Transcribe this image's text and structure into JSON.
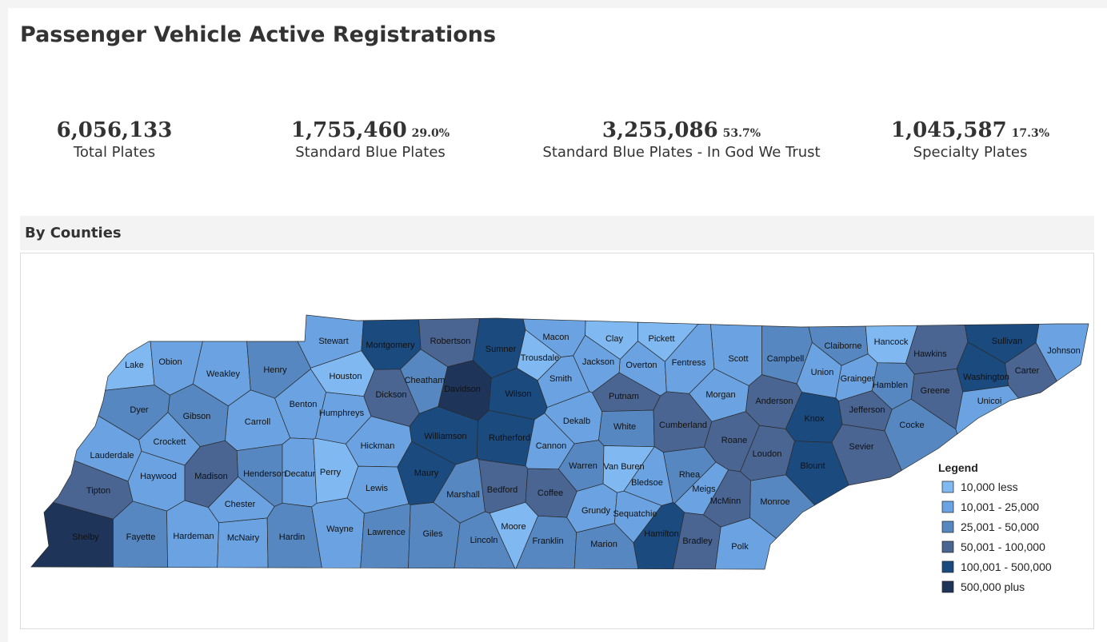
{
  "header": {
    "title": "Passenger Vehicle Active Registrations"
  },
  "stats": [
    {
      "value": "6,056,133",
      "label": "Total Plates"
    },
    {
      "value": "1,755,460",
      "percent": "29.0%",
      "label": "Standard Blue Plates"
    },
    {
      "value": "3,255,086",
      "percent": "53.7%",
      "label": "Standard Blue Plates - In God We Trust"
    },
    {
      "value": "1,045,587",
      "percent": "17.3%",
      "label": "Specialty Plates"
    }
  ],
  "section": {
    "title": "By Counties"
  },
  "legend": {
    "title": "Legend",
    "items": [
      {
        "label": "10,000 less",
        "color": "#80b9f2"
      },
      {
        "label": "10,001 - 25,000",
        "color": "#6ba3e2"
      },
      {
        "label": "25,001 - 50,000",
        "color": "#5687c0"
      },
      {
        "label": "50,001 - 100,000",
        "color": "#4a6592"
      },
      {
        "label": "100,001 - 500,000",
        "color": "#1b4a7f"
      },
      {
        "label": "500,000 plus",
        "color": "#1f3459"
      }
    ]
  },
  "counties": [
    {
      "name": "Lake",
      "color": "#80b9f2"
    },
    {
      "name": "Obion",
      "color": "#6ba3e2"
    },
    {
      "name": "Weakley",
      "color": "#6ba3e2"
    },
    {
      "name": "Henry",
      "color": "#5687c0"
    },
    {
      "name": "Stewart",
      "color": "#6ba3e2"
    },
    {
      "name": "Montgomery",
      "color": "#1b4a7f"
    },
    {
      "name": "Robertson",
      "color": "#4a6592"
    },
    {
      "name": "Sumner",
      "color": "#1b4a7f"
    },
    {
      "name": "Macon",
      "color": "#6ba3e2"
    },
    {
      "name": "Clay",
      "color": "#80b9f2"
    },
    {
      "name": "Pickett",
      "color": "#80b9f2"
    },
    {
      "name": "Scott",
      "color": "#6ba3e2"
    },
    {
      "name": "Campbell",
      "color": "#5687c0"
    },
    {
      "name": "Claiborne",
      "color": "#5687c0"
    },
    {
      "name": "Hancock",
      "color": "#80b9f2"
    },
    {
      "name": "Hawkins",
      "color": "#4a6592"
    },
    {
      "name": "Sullivan",
      "color": "#1b4a7f"
    },
    {
      "name": "Johnson",
      "color": "#6ba3e2"
    },
    {
      "name": "Trousdale",
      "color": "#80b9f2"
    },
    {
      "name": "Jackson",
      "color": "#6ba3e2"
    },
    {
      "name": "Overton",
      "color": "#6ba3e2"
    },
    {
      "name": "Fentress",
      "color": "#6ba3e2"
    },
    {
      "name": "Union",
      "color": "#6ba3e2"
    },
    {
      "name": "Grainger",
      "color": "#6ba3e2"
    },
    {
      "name": "Hamblen",
      "color": "#5687c0"
    },
    {
      "name": "Washington",
      "color": "#1b4a7f"
    },
    {
      "name": "Carter",
      "color": "#4a6592"
    },
    {
      "name": "Greene",
      "color": "#4a6592"
    },
    {
      "name": "Unicoi",
      "color": "#6ba3e2"
    },
    {
      "name": "Houston",
      "color": "#80b9f2"
    },
    {
      "name": "Cheatham",
      "color": "#5687c0"
    },
    {
      "name": "Davidson",
      "color": "#1f3459"
    },
    {
      "name": "Wilson",
      "color": "#1b4a7f"
    },
    {
      "name": "Smith",
      "color": "#6ba3e2"
    },
    {
      "name": "Putnam",
      "color": "#4a6592"
    },
    {
      "name": "Morgan",
      "color": "#6ba3e2"
    },
    {
      "name": "Anderson",
      "color": "#4a6592"
    },
    {
      "name": "Knox",
      "color": "#1b4a7f"
    },
    {
      "name": "Jefferson",
      "color": "#4a6592"
    },
    {
      "name": "Cocke",
      "color": "#5687c0"
    },
    {
      "name": "Sevier",
      "color": "#4a6592"
    },
    {
      "name": "Dyer",
      "color": "#5687c0"
    },
    {
      "name": "Gibson",
      "color": "#5687c0"
    },
    {
      "name": "Carroll",
      "color": "#6ba3e2"
    },
    {
      "name": "Benton",
      "color": "#6ba3e2"
    },
    {
      "name": "Humphreys",
      "color": "#6ba3e2"
    },
    {
      "name": "Dickson",
      "color": "#4a6592"
    },
    {
      "name": "Williamson",
      "color": "#1b4a7f"
    },
    {
      "name": "Rutherford",
      "color": "#1b4a7f"
    },
    {
      "name": "Dekalb",
      "color": "#6ba3e2"
    },
    {
      "name": "White",
      "color": "#5687c0"
    },
    {
      "name": "Cumberland",
      "color": "#4a6592"
    },
    {
      "name": "Roane",
      "color": "#4a6592"
    },
    {
      "name": "Loudon",
      "color": "#4a6592"
    },
    {
      "name": "Blount",
      "color": "#1b4a7f"
    },
    {
      "name": "Crockett",
      "color": "#6ba3e2"
    },
    {
      "name": "Lauderdale",
      "color": "#6ba3e2"
    },
    {
      "name": "Haywood",
      "color": "#6ba3e2"
    },
    {
      "name": "Madison",
      "color": "#4a6592"
    },
    {
      "name": "Henderson",
      "color": "#5687c0"
    },
    {
      "name": "Decatur",
      "color": "#6ba3e2"
    },
    {
      "name": "Perry",
      "color": "#80b9f2"
    },
    {
      "name": "Hickman",
      "color": "#6ba3e2"
    },
    {
      "name": "Lewis",
      "color": "#6ba3e2"
    },
    {
      "name": "Maury",
      "color": "#1b4a7f"
    },
    {
      "name": "Marshall",
      "color": "#5687c0"
    },
    {
      "name": "Bedford",
      "color": "#4a6592"
    },
    {
      "name": "Coffee",
      "color": "#4a6592"
    },
    {
      "name": "Cannon",
      "color": "#6ba3e2"
    },
    {
      "name": "Warren",
      "color": "#5687c0"
    },
    {
      "name": "Van Buren",
      "color": "#80b9f2"
    },
    {
      "name": "Bledsoe",
      "color": "#6ba3e2"
    },
    {
      "name": "Rhea",
      "color": "#5687c0"
    },
    {
      "name": "Meigs",
      "color": "#6ba3e2"
    },
    {
      "name": "McMinn",
      "color": "#4a6592"
    },
    {
      "name": "Monroe",
      "color": "#5687c0"
    },
    {
      "name": "Tipton",
      "color": "#4a6592"
    },
    {
      "name": "Shelby",
      "color": "#1f3459"
    },
    {
      "name": "Fayette",
      "color": "#5687c0"
    },
    {
      "name": "Hardeman",
      "color": "#6ba3e2"
    },
    {
      "name": "McNairy",
      "color": "#6ba3e2"
    },
    {
      "name": "Chester",
      "color": "#6ba3e2"
    },
    {
      "name": "Hardin",
      "color": "#5687c0"
    },
    {
      "name": "Wayne",
      "color": "#6ba3e2"
    },
    {
      "name": "Lawrence",
      "color": "#5687c0"
    },
    {
      "name": "Giles",
      "color": "#5687c0"
    },
    {
      "name": "Lincoln",
      "color": "#5687c0"
    },
    {
      "name": "Moore",
      "color": "#80b9f2"
    },
    {
      "name": "Franklin",
      "color": "#5687c0"
    },
    {
      "name": "Grundy",
      "color": "#6ba3e2"
    },
    {
      "name": "Sequatchie",
      "color": "#6ba3e2"
    },
    {
      "name": "Marion",
      "color": "#5687c0"
    },
    {
      "name": "Hamilton",
      "color": "#1b4a7f"
    },
    {
      "name": "Bradley",
      "color": "#4a6592"
    },
    {
      "name": "Polk",
      "color": "#6ba3e2"
    }
  ]
}
